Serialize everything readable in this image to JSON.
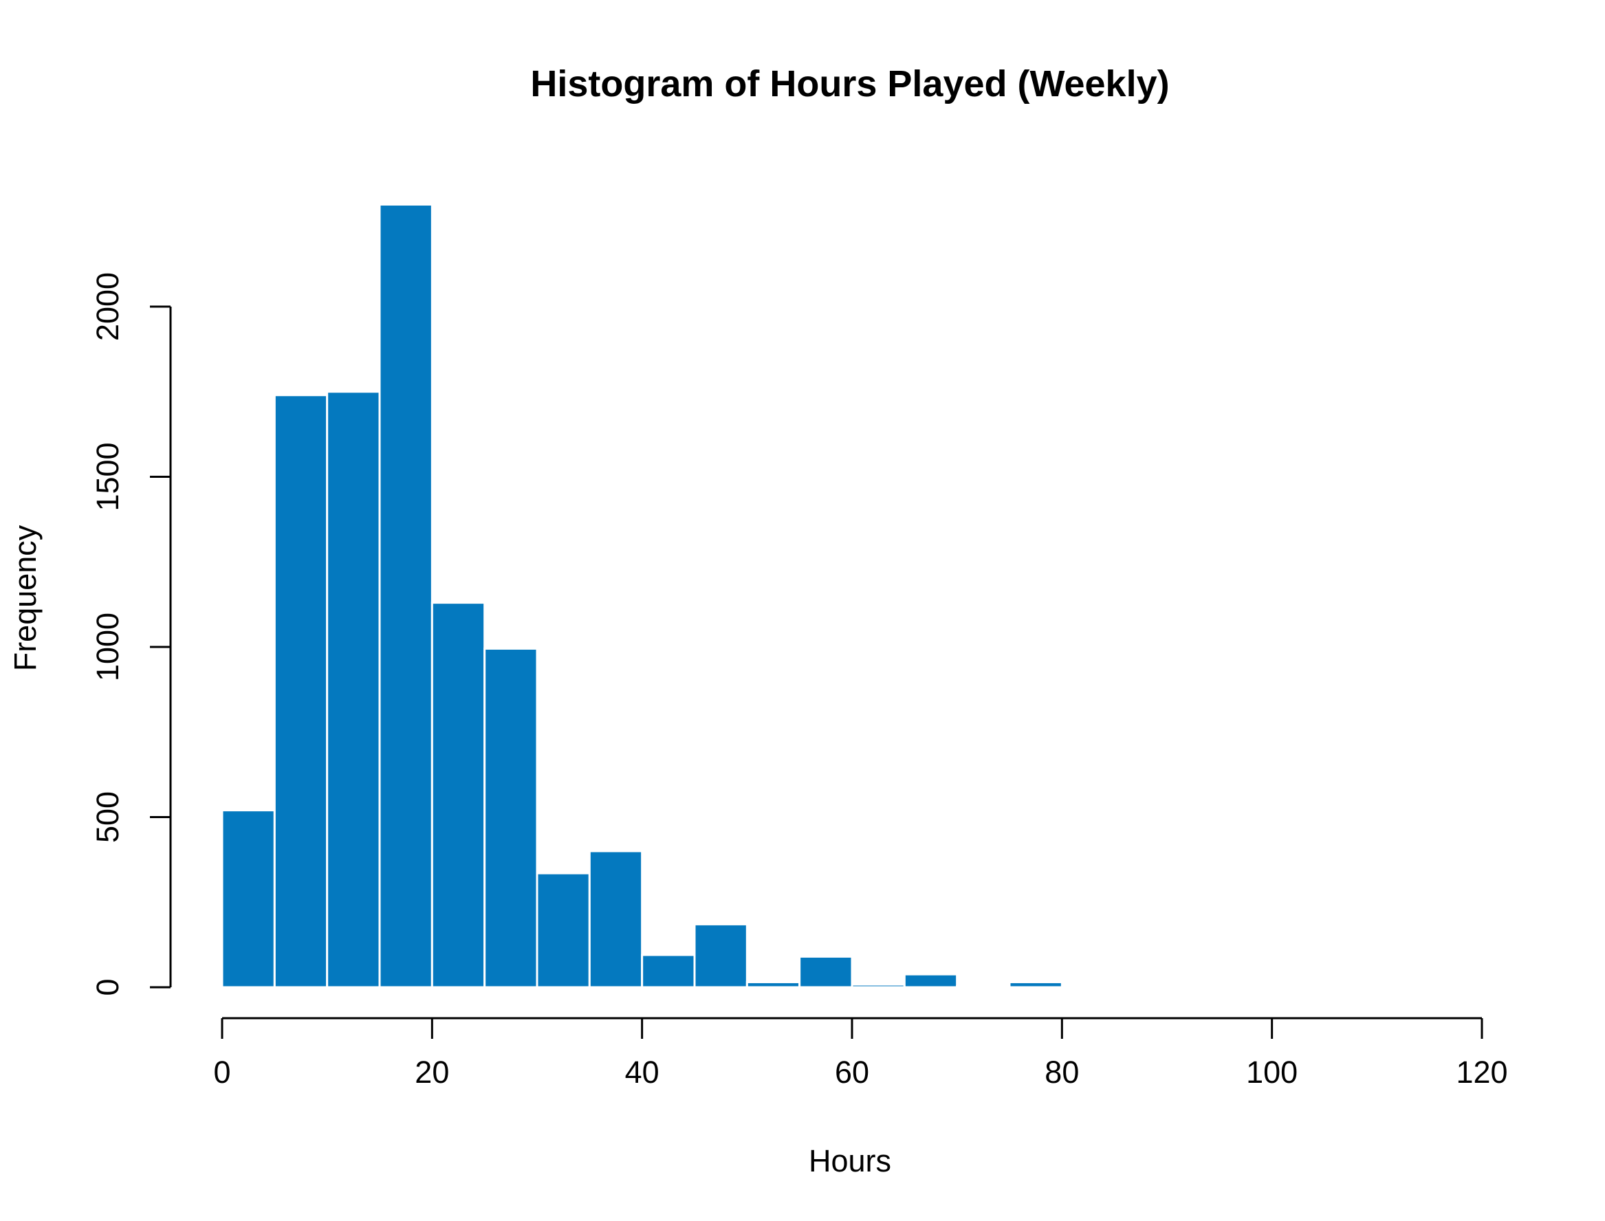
{
  "colors": {
    "bar_fill": "#0479bf",
    "bar_border": "#ffffff",
    "axis": "#000000",
    "background": "#ffffff"
  },
  "chart_data": {
    "type": "bar",
    "subtype": "histogram",
    "title": "Histogram of Hours Played (Weekly)",
    "xlabel": "Hours",
    "ylabel": "Frequency",
    "xlim": [
      0,
      120
    ],
    "ylim": [
      0,
      2300
    ],
    "x_ticks": [
      0,
      20,
      40,
      60,
      80,
      100,
      120
    ],
    "y_ticks": [
      0,
      500,
      1000,
      1500,
      2000
    ],
    "grid": false,
    "bin_width": 5,
    "bins": [
      {
        "x0": 0,
        "x1": 5,
        "count": 520
      },
      {
        "x0": 5,
        "x1": 10,
        "count": 1740
      },
      {
        "x0": 10,
        "x1": 15,
        "count": 1750
      },
      {
        "x0": 15,
        "x1": 20,
        "count": 2300
      },
      {
        "x0": 20,
        "x1": 25,
        "count": 1130
      },
      {
        "x0": 25,
        "x1": 30,
        "count": 995
      },
      {
        "x0": 30,
        "x1": 35,
        "count": 335
      },
      {
        "x0": 35,
        "x1": 40,
        "count": 400
      },
      {
        "x0": 40,
        "x1": 45,
        "count": 95
      },
      {
        "x0": 45,
        "x1": 50,
        "count": 185
      },
      {
        "x0": 50,
        "x1": 55,
        "count": 15
      },
      {
        "x0": 55,
        "x1": 60,
        "count": 90
      },
      {
        "x0": 60,
        "x1": 65,
        "count": 8
      },
      {
        "x0": 65,
        "x1": 70,
        "count": 38
      },
      {
        "x0": 70,
        "x1": 75,
        "count": 3
      },
      {
        "x0": 75,
        "x1": 80,
        "count": 15
      },
      {
        "x0": 80,
        "x1": 85,
        "count": 0
      },
      {
        "x0": 85,
        "x1": 90,
        "count": 0
      },
      {
        "x0": 90,
        "x1": 95,
        "count": 0
      },
      {
        "x0": 95,
        "x1": 100,
        "count": 4
      }
    ]
  }
}
